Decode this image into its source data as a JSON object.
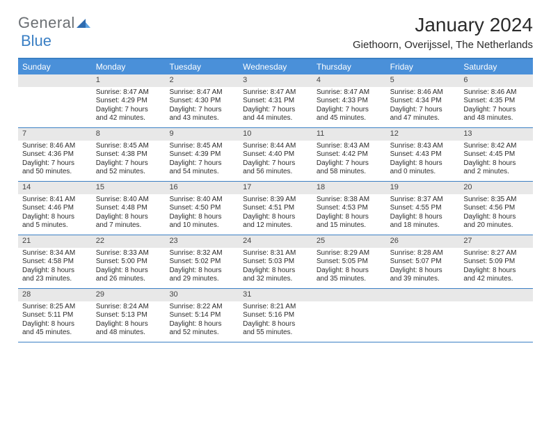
{
  "logo": {
    "text1": "General",
    "text2": "Blue"
  },
  "title": "January 2024",
  "location": "Giethoorn, Overijssel, The Netherlands",
  "colors": {
    "header_bg": "#4a90d9",
    "border": "#3a7fc4",
    "daynum_bg": "#e8e8e8",
    "text": "#2b2b2b",
    "logo_gray": "#6b6f73",
    "logo_blue": "#3a7fc4",
    "white": "#ffffff"
  },
  "fonts": {
    "title_size": 28,
    "location_size": 15,
    "weekday_size": 12,
    "cell_size": 10
  },
  "weekdays": [
    "Sunday",
    "Monday",
    "Tuesday",
    "Wednesday",
    "Thursday",
    "Friday",
    "Saturday"
  ],
  "weeks": [
    [
      {
        "num": "",
        "lines": []
      },
      {
        "num": "1",
        "lines": [
          "Sunrise: 8:47 AM",
          "Sunset: 4:29 PM",
          "Daylight: 7 hours",
          "and 42 minutes."
        ]
      },
      {
        "num": "2",
        "lines": [
          "Sunrise: 8:47 AM",
          "Sunset: 4:30 PM",
          "Daylight: 7 hours",
          "and 43 minutes."
        ]
      },
      {
        "num": "3",
        "lines": [
          "Sunrise: 8:47 AM",
          "Sunset: 4:31 PM",
          "Daylight: 7 hours",
          "and 44 minutes."
        ]
      },
      {
        "num": "4",
        "lines": [
          "Sunrise: 8:47 AM",
          "Sunset: 4:33 PM",
          "Daylight: 7 hours",
          "and 45 minutes."
        ]
      },
      {
        "num": "5",
        "lines": [
          "Sunrise: 8:46 AM",
          "Sunset: 4:34 PM",
          "Daylight: 7 hours",
          "and 47 minutes."
        ]
      },
      {
        "num": "6",
        "lines": [
          "Sunrise: 8:46 AM",
          "Sunset: 4:35 PM",
          "Daylight: 7 hours",
          "and 48 minutes."
        ]
      }
    ],
    [
      {
        "num": "7",
        "lines": [
          "Sunrise: 8:46 AM",
          "Sunset: 4:36 PM",
          "Daylight: 7 hours",
          "and 50 minutes."
        ]
      },
      {
        "num": "8",
        "lines": [
          "Sunrise: 8:45 AM",
          "Sunset: 4:38 PM",
          "Daylight: 7 hours",
          "and 52 minutes."
        ]
      },
      {
        "num": "9",
        "lines": [
          "Sunrise: 8:45 AM",
          "Sunset: 4:39 PM",
          "Daylight: 7 hours",
          "and 54 minutes."
        ]
      },
      {
        "num": "10",
        "lines": [
          "Sunrise: 8:44 AM",
          "Sunset: 4:40 PM",
          "Daylight: 7 hours",
          "and 56 minutes."
        ]
      },
      {
        "num": "11",
        "lines": [
          "Sunrise: 8:43 AM",
          "Sunset: 4:42 PM",
          "Daylight: 7 hours",
          "and 58 minutes."
        ]
      },
      {
        "num": "12",
        "lines": [
          "Sunrise: 8:43 AM",
          "Sunset: 4:43 PM",
          "Daylight: 8 hours",
          "and 0 minutes."
        ]
      },
      {
        "num": "13",
        "lines": [
          "Sunrise: 8:42 AM",
          "Sunset: 4:45 PM",
          "Daylight: 8 hours",
          "and 2 minutes."
        ]
      }
    ],
    [
      {
        "num": "14",
        "lines": [
          "Sunrise: 8:41 AM",
          "Sunset: 4:46 PM",
          "Daylight: 8 hours",
          "and 5 minutes."
        ]
      },
      {
        "num": "15",
        "lines": [
          "Sunrise: 8:40 AM",
          "Sunset: 4:48 PM",
          "Daylight: 8 hours",
          "and 7 minutes."
        ]
      },
      {
        "num": "16",
        "lines": [
          "Sunrise: 8:40 AM",
          "Sunset: 4:50 PM",
          "Daylight: 8 hours",
          "and 10 minutes."
        ]
      },
      {
        "num": "17",
        "lines": [
          "Sunrise: 8:39 AM",
          "Sunset: 4:51 PM",
          "Daylight: 8 hours",
          "and 12 minutes."
        ]
      },
      {
        "num": "18",
        "lines": [
          "Sunrise: 8:38 AM",
          "Sunset: 4:53 PM",
          "Daylight: 8 hours",
          "and 15 minutes."
        ]
      },
      {
        "num": "19",
        "lines": [
          "Sunrise: 8:37 AM",
          "Sunset: 4:55 PM",
          "Daylight: 8 hours",
          "and 18 minutes."
        ]
      },
      {
        "num": "20",
        "lines": [
          "Sunrise: 8:35 AM",
          "Sunset: 4:56 PM",
          "Daylight: 8 hours",
          "and 20 minutes."
        ]
      }
    ],
    [
      {
        "num": "21",
        "lines": [
          "Sunrise: 8:34 AM",
          "Sunset: 4:58 PM",
          "Daylight: 8 hours",
          "and 23 minutes."
        ]
      },
      {
        "num": "22",
        "lines": [
          "Sunrise: 8:33 AM",
          "Sunset: 5:00 PM",
          "Daylight: 8 hours",
          "and 26 minutes."
        ]
      },
      {
        "num": "23",
        "lines": [
          "Sunrise: 8:32 AM",
          "Sunset: 5:02 PM",
          "Daylight: 8 hours",
          "and 29 minutes."
        ]
      },
      {
        "num": "24",
        "lines": [
          "Sunrise: 8:31 AM",
          "Sunset: 5:03 PM",
          "Daylight: 8 hours",
          "and 32 minutes."
        ]
      },
      {
        "num": "25",
        "lines": [
          "Sunrise: 8:29 AM",
          "Sunset: 5:05 PM",
          "Daylight: 8 hours",
          "and 35 minutes."
        ]
      },
      {
        "num": "26",
        "lines": [
          "Sunrise: 8:28 AM",
          "Sunset: 5:07 PM",
          "Daylight: 8 hours",
          "and 39 minutes."
        ]
      },
      {
        "num": "27",
        "lines": [
          "Sunrise: 8:27 AM",
          "Sunset: 5:09 PM",
          "Daylight: 8 hours",
          "and 42 minutes."
        ]
      }
    ],
    [
      {
        "num": "28",
        "lines": [
          "Sunrise: 8:25 AM",
          "Sunset: 5:11 PM",
          "Daylight: 8 hours",
          "and 45 minutes."
        ]
      },
      {
        "num": "29",
        "lines": [
          "Sunrise: 8:24 AM",
          "Sunset: 5:13 PM",
          "Daylight: 8 hours",
          "and 48 minutes."
        ]
      },
      {
        "num": "30",
        "lines": [
          "Sunrise: 8:22 AM",
          "Sunset: 5:14 PM",
          "Daylight: 8 hours",
          "and 52 minutes."
        ]
      },
      {
        "num": "31",
        "lines": [
          "Sunrise: 8:21 AM",
          "Sunset: 5:16 PM",
          "Daylight: 8 hours",
          "and 55 minutes."
        ]
      },
      {
        "num": "",
        "lines": []
      },
      {
        "num": "",
        "lines": []
      },
      {
        "num": "",
        "lines": []
      }
    ]
  ]
}
